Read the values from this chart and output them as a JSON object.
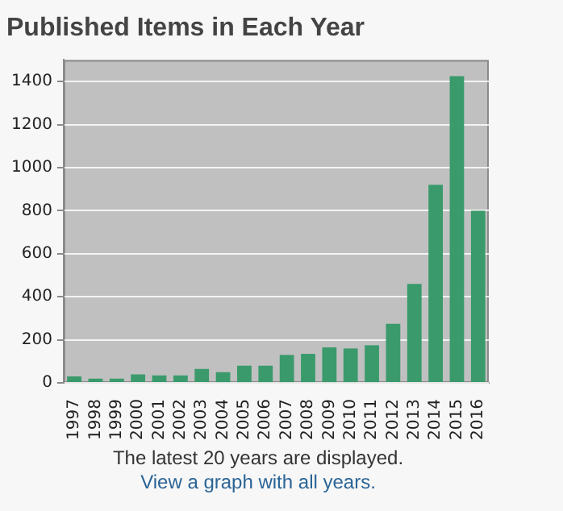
{
  "chart_data": {
    "type": "bar",
    "title": "Published Items in Each Year",
    "categories": [
      "1997",
      "1998",
      "1999",
      "2000",
      "2001",
      "2002",
      "2003",
      "2004",
      "2005",
      "2006",
      "2007",
      "2008",
      "2009",
      "2010",
      "2011",
      "2012",
      "2013",
      "2014",
      "2015",
      "2016"
    ],
    "values": [
      30,
      20,
      20,
      40,
      35,
      35,
      65,
      50,
      80,
      80,
      130,
      135,
      165,
      160,
      175,
      275,
      460,
      920,
      1425,
      800
    ],
    "color": "#3a9a6c",
    "ylim": [
      0,
      1500
    ],
    "yticks": [
      0,
      200,
      400,
      600,
      800,
      1000,
      1200,
      1400
    ],
    "grid": "y",
    "annotations": [
      "The latest 20 years are displayed.",
      "View a graph with all years."
    ]
  }
}
